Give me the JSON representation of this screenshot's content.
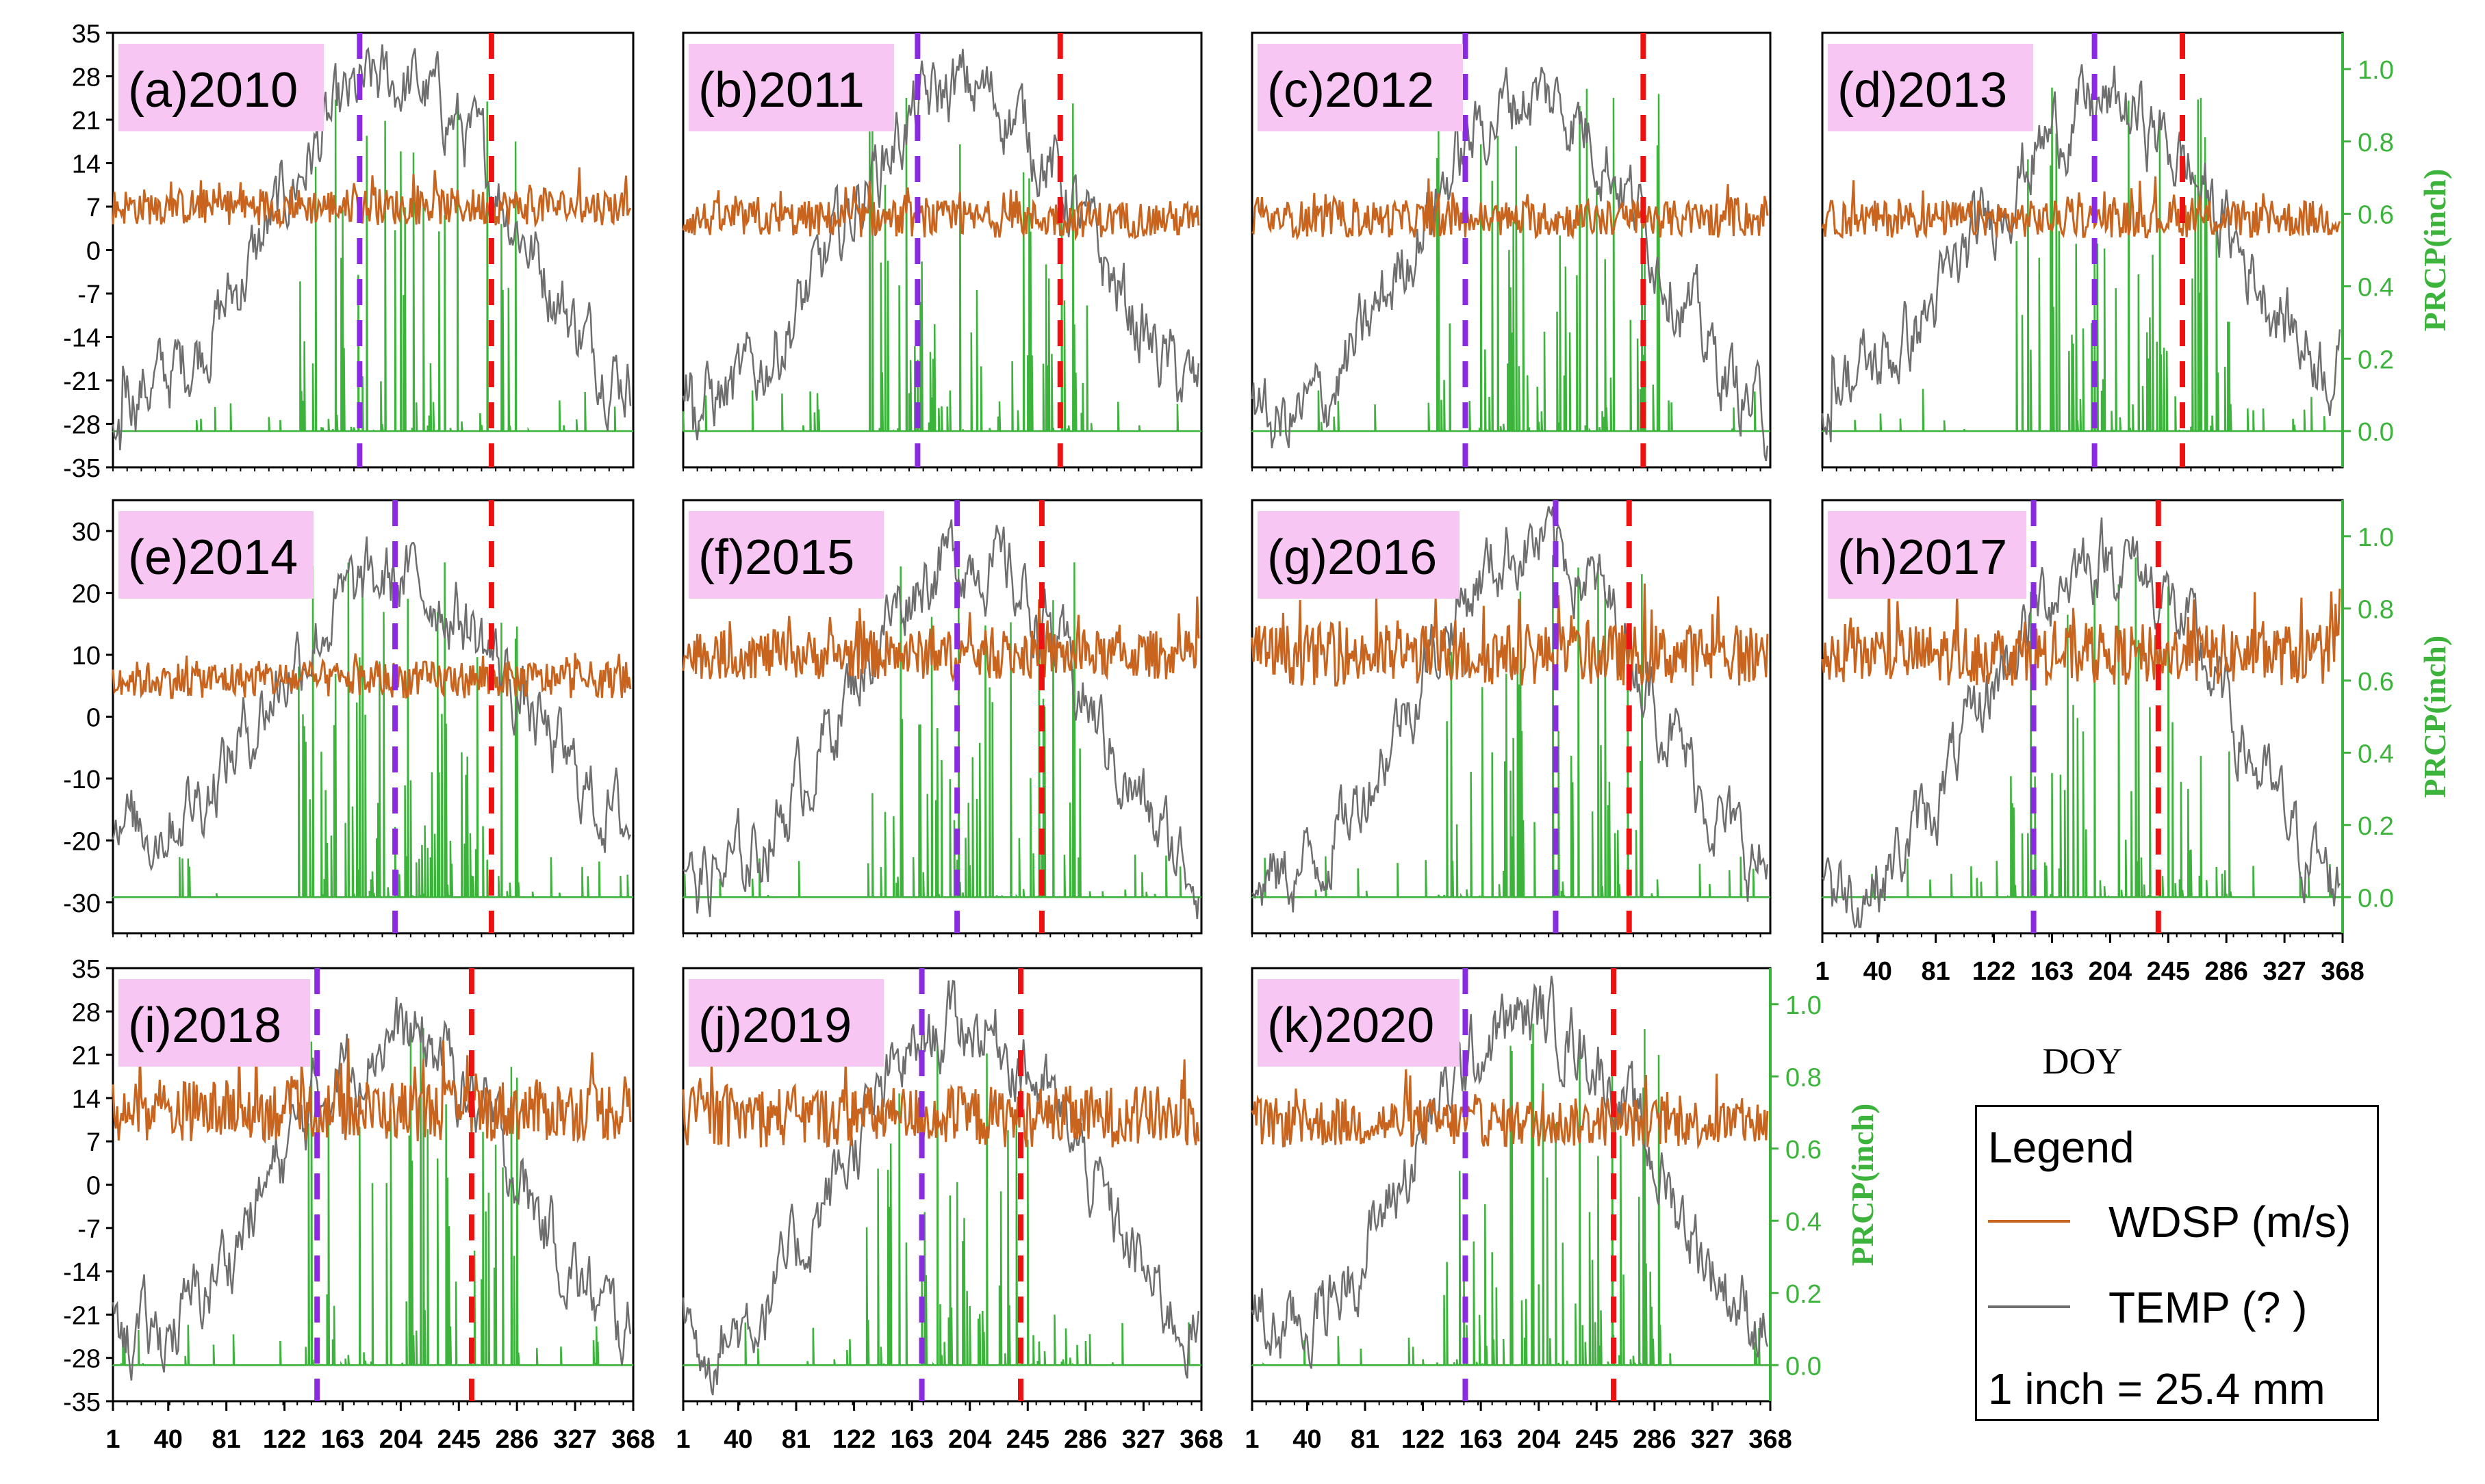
{
  "colors": {
    "wdsp": "#c8641e",
    "temp": "#6e6e6e",
    "prcp": "#3cb43c",
    "onset": "#8a2be2",
    "end": "#ee1111",
    "label_bg": "#f7c6f2"
  },
  "chart_data": {
    "type": "line",
    "xlabel": "DOY",
    "x_ticks": [
      1,
      40,
      81,
      122,
      163,
      204,
      245,
      286,
      327,
      368
    ],
    "xlim": [
      1,
      368
    ],
    "right_axis_label": "PRCP(inch)",
    "prcp_ticks": [
      "0.0",
      "0.2",
      "0.4",
      "0.6",
      "0.8",
      "1.0"
    ],
    "prcp_ylim": [
      -0.1,
      1.1
    ],
    "row_y_ticks": [
      [
        "35",
        "28",
        "21",
        "14",
        "7",
        "0",
        "-7",
        "-14",
        "-21",
        "-28",
        "-35"
      ],
      [
        "30",
        "20",
        "10",
        "0",
        "-10",
        "-20",
        "-30"
      ],
      [
        "35",
        "28",
        "21",
        "14",
        "7",
        "0",
        "-7",
        "-14",
        "-21",
        "-28",
        "-35"
      ]
    ],
    "row_ylim": [
      [
        -35,
        35
      ],
      [
        -35,
        35
      ],
      [
        -35,
        35
      ]
    ],
    "series_names": [
      "WDSP (m/s)",
      "TEMP (?  )",
      "PRCP"
    ],
    "panels": [
      {
        "label": "(a)2010",
        "row": 0,
        "col": 0,
        "onset_doy": 175,
        "end_doy": 268,
        "temp_peak": 27,
        "temp_winter": -22,
        "temp_start": -30,
        "wdsp_mean": 7,
        "wdsp_amp": 3,
        "prcp_baseline": -28
      },
      {
        "label": "(b)2011",
        "row": 0,
        "col": 1,
        "onset_doy": 167,
        "end_doy": 268,
        "temp_peak": 26,
        "temp_winter": -24,
        "temp_start": -22,
        "wdsp_mean": 5,
        "wdsp_amp": 3,
        "prcp_baseline": -28
      },
      {
        "label": "(c)2012",
        "row": 0,
        "col": 2,
        "onset_doy": 152,
        "end_doy": 278,
        "temp_peak": 25,
        "temp_winter": -28,
        "temp_start": -24,
        "wdsp_mean": 5,
        "wdsp_amp": 3,
        "prcp_baseline": -28
      },
      {
        "label": "(d)2013",
        "row": 0,
        "col": 3,
        "onset_doy": 193,
        "end_doy": 255,
        "temp_peak": 23,
        "temp_winter": -20,
        "temp_start": -28,
        "wdsp_mean": 5,
        "wdsp_amp": 3,
        "prcp_baseline": -28
      },
      {
        "label": "(e)2014",
        "row": 1,
        "col": 0,
        "onset_doy": 200,
        "end_doy": 268,
        "temp_peak": 22,
        "temp_winter": -18,
        "temp_start": -18,
        "wdsp_mean": 6,
        "wdsp_amp": 3,
        "prcp_baseline": -28
      },
      {
        "label": "(f)2015",
        "row": 1,
        "col": 1,
        "onset_doy": 195,
        "end_doy": 255,
        "temp_peak": 26,
        "temp_winter": -26,
        "temp_start": -24,
        "wdsp_mean": 10,
        "wdsp_amp": 4,
        "prcp_baseline": -29
      },
      {
        "label": "(g)2016",
        "row": 1,
        "col": 2,
        "onset_doy": 216,
        "end_doy": 268,
        "temp_peak": 28,
        "temp_winter": -26,
        "temp_start": -28,
        "wdsp_mean": 10,
        "wdsp_amp": 5,
        "prcp_baseline": -29
      },
      {
        "label": "(h)2017",
        "row": 1,
        "col": 3,
        "onset_doy": 150,
        "end_doy": 238,
        "temp_peak": 26,
        "temp_winter": -28,
        "temp_start": -24,
        "wdsp_mean": 10,
        "wdsp_amp": 5,
        "prcp_baseline": -29
      },
      {
        "label": "(i)2018",
        "row": 2,
        "col": 0,
        "onset_doy": 145,
        "end_doy": 254,
        "temp_peak": 24,
        "temp_winter": -25,
        "temp_start": -22,
        "wdsp_mean": 12,
        "wdsp_amp": 5,
        "prcp_baseline": -21
      },
      {
        "label": "(j)2019",
        "row": 2,
        "col": 1,
        "onset_doy": 170,
        "end_doy": 240,
        "temp_peak": 26,
        "temp_winter": -25,
        "temp_start": -21,
        "wdsp_mean": 11,
        "wdsp_amp": 5,
        "prcp_baseline": -28
      },
      {
        "label": "(k)2020",
        "row": 2,
        "col": 2,
        "onset_doy": 152,
        "end_doy": 257,
        "temp_peak": 27,
        "temp_winter": -24,
        "temp_start": -20,
        "wdsp_mean": 10,
        "wdsp_amp": 4,
        "prcp_baseline": -28
      }
    ]
  },
  "legend": {
    "title": "Legend",
    "wdsp_label": "WDSP (m/s)",
    "temp_label": "TEMP (?  )",
    "note": "1 inch = 25.4 mm"
  }
}
